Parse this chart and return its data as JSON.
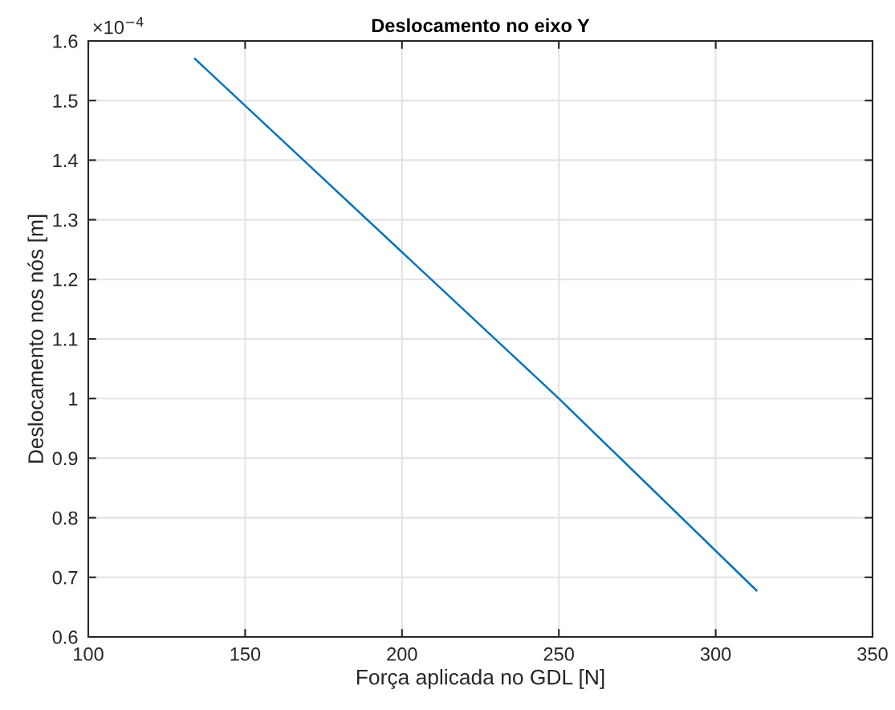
{
  "chart_data": {
    "type": "line",
    "title": "Deslocamento no eixo Y",
    "xlabel": "Força aplicada no GDL [N]",
    "ylabel": "Deslocamento nos nós [m]",
    "x": [
      134,
      250,
      313
    ],
    "series": [
      {
        "color": "#0072bd",
        "values": [
          1.57,
          1.0,
          0.678
        ]
      }
    ],
    "xlim": [
      100,
      350
    ],
    "xticks": [
      100,
      150,
      200,
      250,
      300,
      350
    ],
    "ylim": [
      0.6,
      1.6
    ],
    "yticks": [
      0.6,
      0.7,
      0.8,
      0.9,
      1,
      1.1,
      1.2,
      1.3,
      1.4,
      1.5,
      1.6
    ],
    "annotations": [
      "×10$^{−4}$"
    ],
    "grid": true,
    "marker": "none",
    "line_style": "solid"
  }
}
